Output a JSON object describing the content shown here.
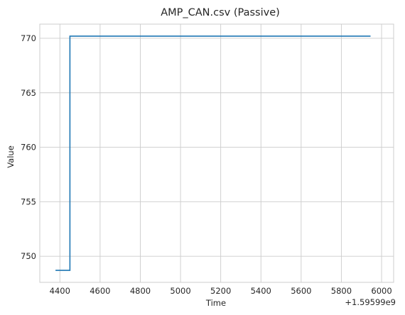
{
  "chart_data": {
    "type": "line",
    "title": "AMP_CAN.csv (Passive)",
    "xlabel": "Time",
    "ylabel": "Value",
    "x_offset_label": "+1.59599e9",
    "xlim": [
      4300,
      6060
    ],
    "ylim": [
      747.6,
      771.3
    ],
    "xticks": [
      4400,
      4600,
      4800,
      5000,
      5200,
      5400,
      5600,
      5800,
      6000
    ],
    "xtick_labels": [
      "4400",
      "4600",
      "4800",
      "5000",
      "5200",
      "5400",
      "5600",
      "5800",
      "6000"
    ],
    "yticks": [
      750,
      755,
      760,
      765,
      770
    ],
    "ytick_labels": [
      "750",
      "755",
      "760",
      "765",
      "770"
    ],
    "grid": true,
    "colors": {
      "series": "#1f77b4",
      "grid": "#cccccc",
      "text": "#262626"
    },
    "series": [
      {
        "step": "post",
        "x": [
          4378,
          4450,
          4450,
          5945
        ],
        "y": [
          748.7,
          748.7,
          770.2,
          770.2
        ]
      }
    ]
  }
}
